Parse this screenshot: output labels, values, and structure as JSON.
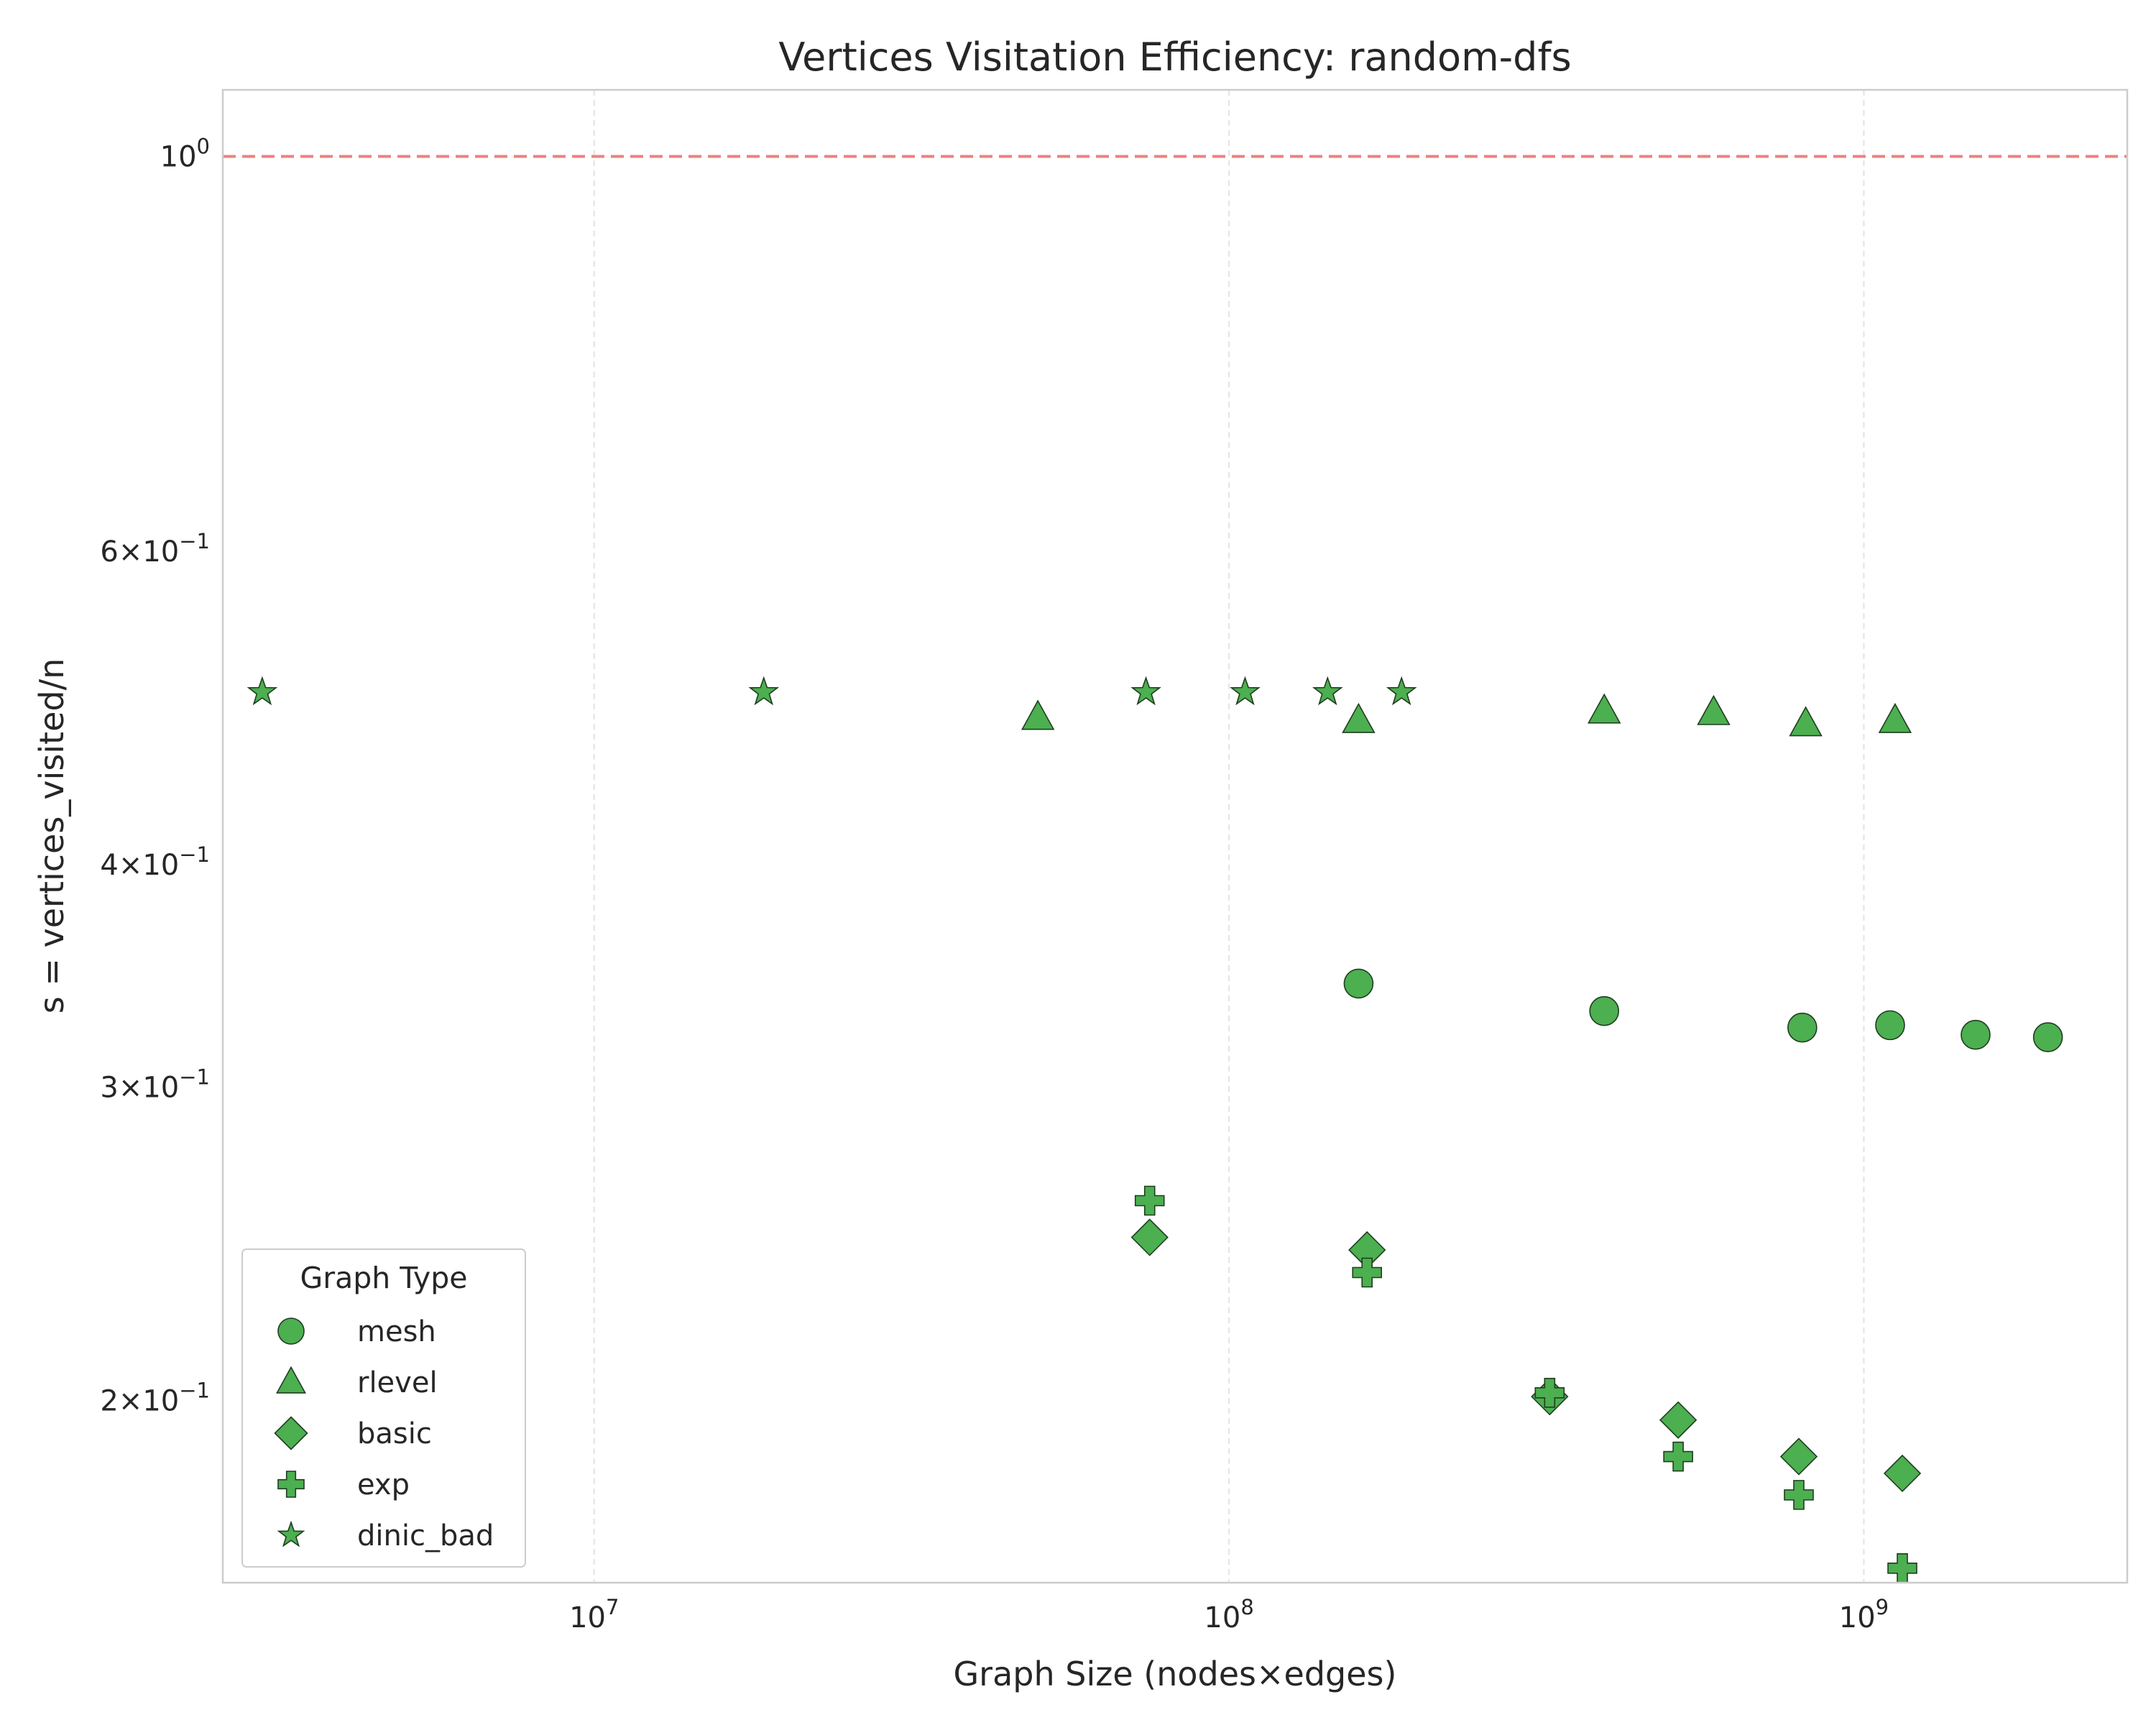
{
  "chart_data": {
    "type": "scatter",
    "title": "Vertices Visitation Efficiency: random-dfs",
    "xlabel": "Graph Size (nodes×edges)",
    "ylabel": "s = vertices_visited/n",
    "xscale": "log",
    "yscale": "log",
    "xlim": [
      2600000,
      2600000000
    ],
    "ylim": [
      0.158,
      1.09
    ],
    "grid": "x-only dashed",
    "x_ticks": [
      {
        "value": 10000000,
        "base": "10",
        "exp": "7"
      },
      {
        "value": 100000000,
        "base": "10",
        "exp": "8"
      },
      {
        "value": 1000000000,
        "base": "10",
        "exp": "9"
      }
    ],
    "y_ticks": [
      {
        "value": 1.0,
        "base": "10",
        "exp": "0"
      },
      {
        "value": 0.6,
        "base": "6×10",
        "exp": "−1"
      },
      {
        "value": 0.4,
        "base": "4×10",
        "exp": "−1"
      },
      {
        "value": 0.3,
        "base": "3×10",
        "exp": "−1"
      },
      {
        "value": 0.2,
        "base": "2×10",
        "exp": "−1"
      }
    ],
    "reference_line": {
      "y": 1.0,
      "color": "#f08080",
      "style": "dashed"
    },
    "marker_color": "#4caf50",
    "marker_edge": "#1f3d1f",
    "legend": {
      "title": "Graph Type",
      "position": "lower-left"
    },
    "series": [
      {
        "name": "mesh",
        "marker": "circle",
        "points": [
          [
            160000000,
            0.343
          ],
          [
            390000000,
            0.331
          ],
          [
            800000000,
            0.324
          ],
          [
            1100000000,
            0.325
          ],
          [
            1500000000,
            0.321
          ],
          [
            1950000000,
            0.32
          ]
        ]
      },
      {
        "name": "rlevel",
        "marker": "triangle",
        "points": [
          [
            50000000,
            0.484
          ],
          [
            160000000,
            0.482
          ],
          [
            390000000,
            0.488
          ],
          [
            580000000,
            0.487
          ],
          [
            810000000,
            0.48
          ],
          [
            1120000000,
            0.482
          ]
        ]
      },
      {
        "name": "basic",
        "marker": "diamond",
        "points": [
          [
            75000000,
            0.247
          ],
          [
            165000000,
            0.243
          ],
          [
            320000000,
            0.201
          ],
          [
            510000000,
            0.195
          ],
          [
            790000000,
            0.186
          ],
          [
            1150000000,
            0.182
          ]
        ]
      },
      {
        "name": "exp",
        "marker": "plus",
        "points": [
          [
            75000000,
            0.259
          ],
          [
            165000000,
            0.236
          ],
          [
            320000000,
            0.202
          ],
          [
            510000000,
            0.186
          ],
          [
            790000000,
            0.177
          ],
          [
            1150000000,
            0.161
          ]
        ]
      },
      {
        "name": "dinic_bad",
        "marker": "star",
        "points": [
          [
            3000000,
            0.5
          ],
          [
            18500000,
            0.5
          ],
          [
            74000000,
            0.5
          ],
          [
            106000000,
            0.5
          ],
          [
            143000000,
            0.5
          ],
          [
            187000000,
            0.5
          ]
        ]
      }
    ]
  }
}
